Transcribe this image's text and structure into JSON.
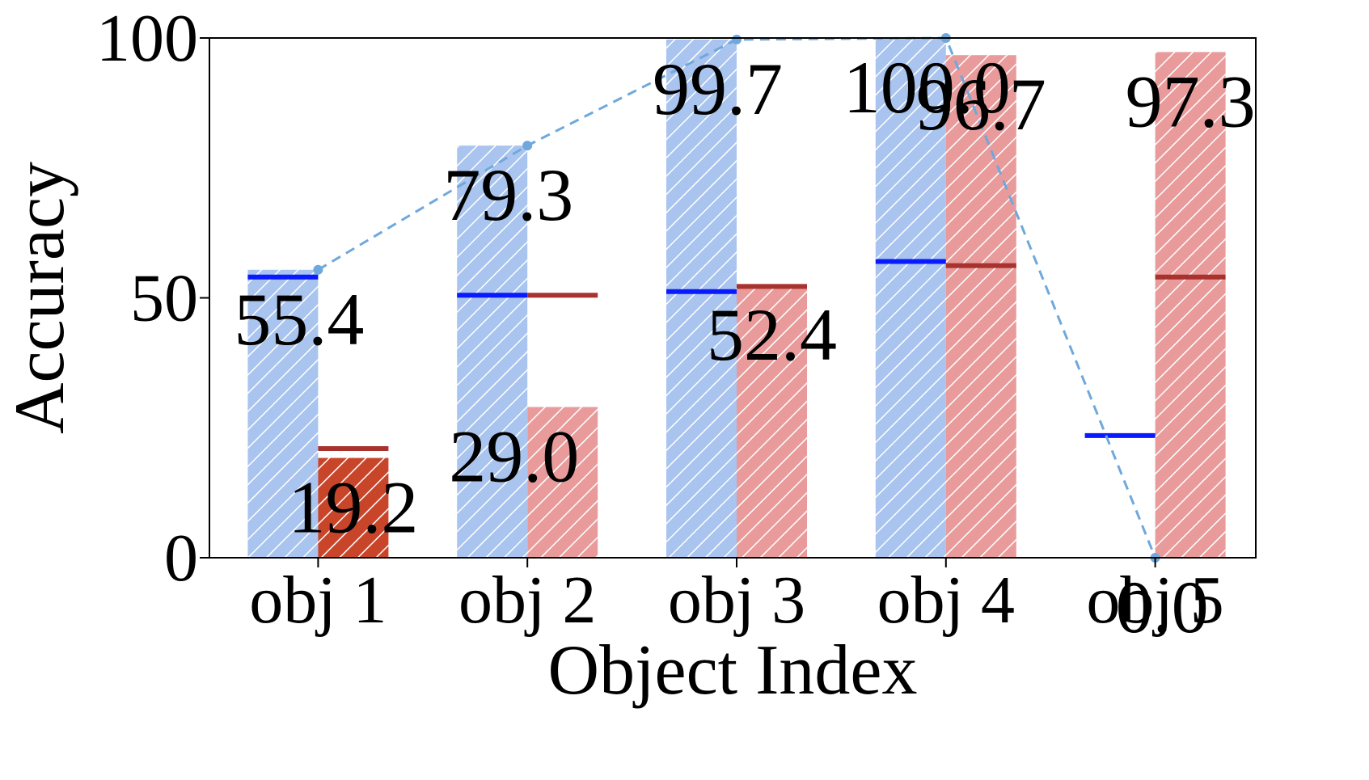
{
  "chart_data": {
    "type": "bar",
    "xlabel": "Object Index",
    "ylabel": "Accuracy",
    "ylim": [
      0,
      100
    ],
    "yticks": [
      0,
      50,
      100
    ],
    "categories": [
      "obj 1",
      "obj 2",
      "obj 3",
      "obj 4",
      "obj 5"
    ],
    "series": [
      {
        "values": [
          55.4,
          79.3,
          99.7,
          100.0,
          0.0
        ],
        "color": "#a9c4ee",
        "hatch": true
      },
      {
        "values": [
          19.2,
          29.0,
          52.4,
          96.7,
          97.3
        ],
        "color": "#e99b9b",
        "hatch": true
      }
    ],
    "highlight_bar": {
      "series": 1,
      "index": 0,
      "color": "#c9452a"
    },
    "mean_lines": [
      {
        "values": [
          54.0,
          50.5,
          51.2,
          57.0,
          23.5
        ],
        "color": "#0a1aff"
      },
      {
        "values": [
          21.0,
          50.5,
          52.2,
          56.2,
          54.0
        ],
        "color": "#a8322e"
      }
    ],
    "trend_line": {
      "values": [
        55.4,
        79.3,
        99.7,
        100.0,
        0.0
      ],
      "color": "#6fa8dc",
      "style": "dashed"
    },
    "data_labels": {
      "series_0": [
        "55.4",
        "79.3",
        "99.7",
        "100.0",
        "0.0"
      ],
      "series_1": [
        "19.2",
        "29.0",
        "52.4",
        "96.7",
        "97.3"
      ]
    },
    "grid": false,
    "legend": "none"
  }
}
